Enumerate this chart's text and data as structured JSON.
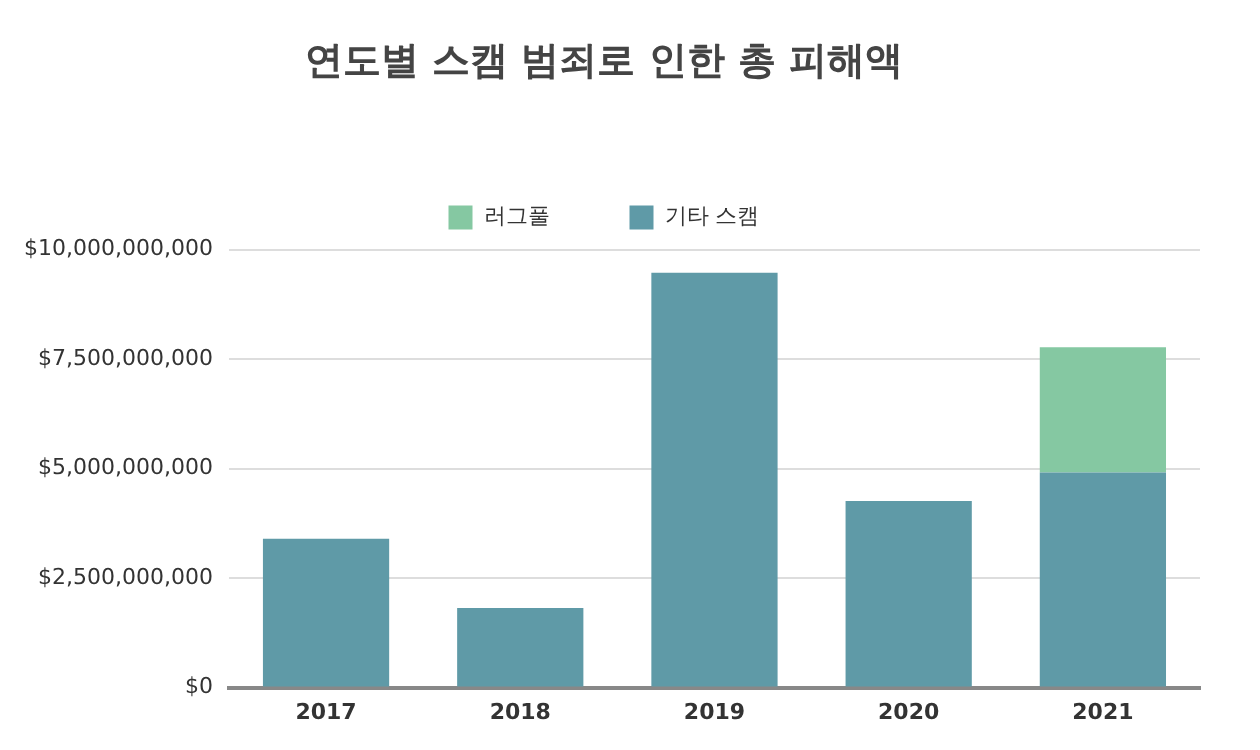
{
  "chart_data": {
    "type": "bar",
    "title": "연도별 스캠 범죄로 인한 총 피해액",
    "categories": [
      "2017",
      "2018",
      "2019",
      "2020",
      "2021"
    ],
    "series": [
      {
        "name": "기타 스캠",
        "color": "#5f9aa7",
        "values": [
          3400000000,
          1820000000,
          9470000000,
          4260000000,
          4910000000
        ]
      },
      {
        "name": "러그풀",
        "color": "#85c8a2",
        "values": [
          null,
          null,
          null,
          null,
          2860000000
        ]
      }
    ],
    "stacked": true,
    "legend": "top",
    "grid": "y",
    "ylim": [
      0,
      10000000000
    ],
    "yticks": [
      {
        "value": 0,
        "label": "$0"
      },
      {
        "value": 2500000000,
        "label": "$2,500,000,000"
      },
      {
        "value": 5000000000,
        "label": "$5,000,000,000"
      },
      {
        "value": 7500000000,
        "label": "$7,500,000,000"
      },
      {
        "value": 10000000000,
        "label": "$10,000,000,000"
      }
    ]
  }
}
